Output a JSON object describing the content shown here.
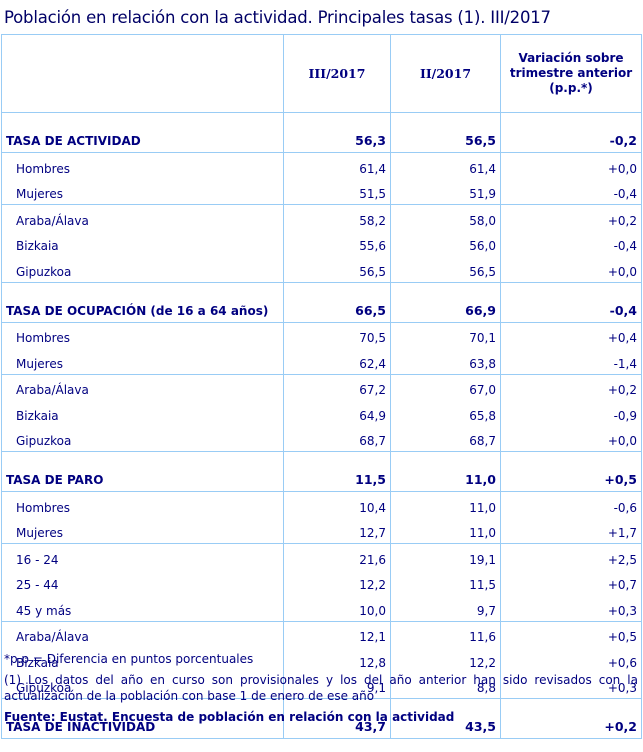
{
  "title": "Población en relación con la actividad. Principales tasas (1). III/2017",
  "table": {
    "headers": {
      "label": "",
      "current": "III/2017",
      "previous": "II/2017",
      "variation": "Variación sobre trimestre anterior (p.p.*)"
    },
    "sections": [
      {
        "label": "TASA DE ACTIVIDAD",
        "current": "56,3",
        "previous": "56,5",
        "variation": "-0,2",
        "groups": [
          [
            {
              "label": "Hombres",
              "current": "61,4",
              "previous": "61,4",
              "variation": "+0,0"
            },
            {
              "label": "Mujeres",
              "current": "51,5",
              "previous": "51,9",
              "variation": "-0,4"
            }
          ],
          [
            {
              "label": "Araba/Álava",
              "current": "58,2",
              "previous": "58,0",
              "variation": "+0,2"
            },
            {
              "label": "Bizkaia",
              "current": "55,6",
              "previous": "56,0",
              "variation": "-0,4"
            },
            {
              "label": "Gipuzkoa",
              "current": "56,5",
              "previous": "56,5",
              "variation": "+0,0"
            }
          ]
        ]
      },
      {
        "label": "TASA DE OCUPACIÓN (de 16 a 64 años)",
        "current": "66,5",
        "previous": "66,9",
        "variation": "-0,4",
        "groups": [
          [
            {
              "label": "Hombres",
              "current": "70,5",
              "previous": "70,1",
              "variation": "+0,4"
            },
            {
              "label": "Mujeres",
              "current": "62,4",
              "previous": "63,8",
              "variation": "-1,4"
            }
          ],
          [
            {
              "label": "Araba/Álava",
              "current": "67,2",
              "previous": "67,0",
              "variation": "+0,2"
            },
            {
              "label": "Bizkaia",
              "current": "64,9",
              "previous": "65,8",
              "variation": "-0,9"
            },
            {
              "label": "Gipuzkoa",
              "current": "68,7",
              "previous": "68,7",
              "variation": "+0,0"
            }
          ]
        ]
      },
      {
        "label": "TASA DE PARO",
        "current": "11,5",
        "previous": "11,0",
        "variation": "+0,5",
        "groups": [
          [
            {
              "label": "Hombres",
              "current": "10,4",
              "previous": "11,0",
              "variation": "-0,6"
            },
            {
              "label": "Mujeres",
              "current": "12,7",
              "previous": "11,0",
              "variation": "+1,7"
            }
          ],
          [
            {
              "label": "16 - 24",
              "current": "21,6",
              "previous": "19,1",
              "variation": "+2,5"
            },
            {
              "label": "25 - 44",
              "current": "12,2",
              "previous": "11,5",
              "variation": "+0,7"
            },
            {
              "label": "45  y más",
              "current": "10,0",
              "previous": "9,7",
              "variation": "+0,3"
            }
          ],
          [
            {
              "label": "Araba/Álava",
              "current": "12,1",
              "previous": "11,6",
              "variation": "+0,5"
            },
            {
              "label": "Bizkaia",
              "current": "12,8",
              "previous": "12,2",
              "variation": "+0,6"
            },
            {
              "label": "Gipuzkoa",
              "current": "9,1",
              "previous": "8,8",
              "variation": "+0,3"
            }
          ]
        ]
      },
      {
        "label": "TASA DE INACTIVIDAD",
        "current": "43,7",
        "previous": "43,5",
        "variation": "+0,2",
        "groups": []
      }
    ]
  },
  "notes": {
    "pp": "*p.p = Diferencia en puntos porcentuales",
    "footnote1": "(1) Los datos del año en curso son provisionales y los del año anterior han sido revisados con la actualización de la población con base 1 de enero de ese año",
    "source": "Fuente: Eustat. Encuesta de población en relación con la actividad"
  },
  "colors": {
    "text": "#000080",
    "border": "#99ccf5",
    "background": "#ffffff"
  }
}
